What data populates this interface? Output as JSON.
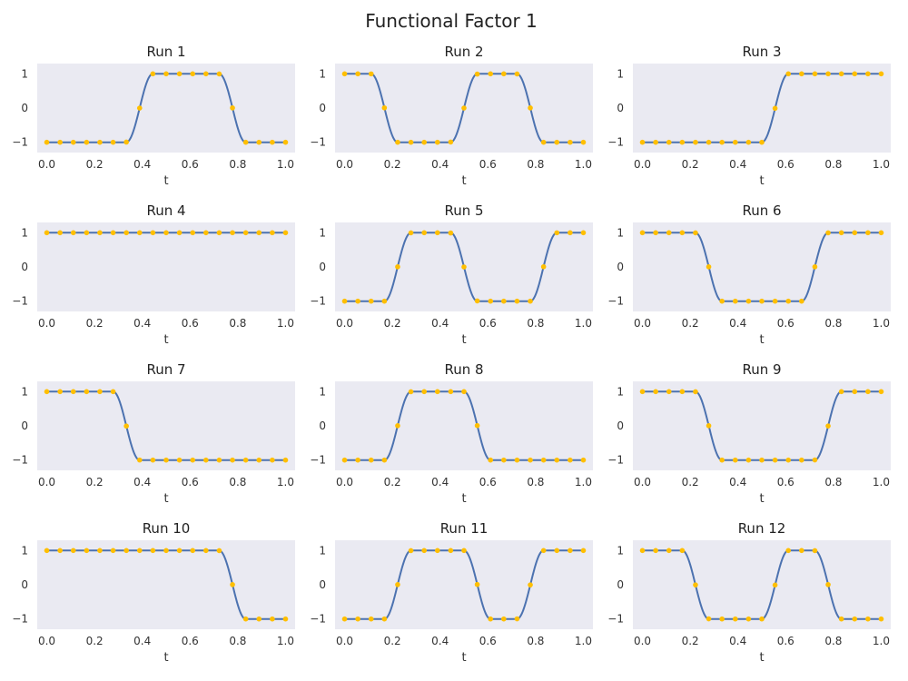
{
  "figure": {
    "title": "Functional Factor 1",
    "xlabel": "t",
    "line_color": "#4c72b0",
    "point_color": "#ffbf00",
    "panel_bg": "#eaeaf2"
  },
  "chart_data": [
    {
      "type": "line",
      "title": "Run 1",
      "xlabel": "t",
      "ylabel": "",
      "xlim": [
        -0.04,
        1.04
      ],
      "ylim": [
        -1.3,
        1.3
      ],
      "xticks": [
        "0.0",
        "0.2",
        "0.4",
        "0.6",
        "0.8",
        "1.0"
      ],
      "yticks": [
        "1",
        "0",
        "−1"
      ],
      "grid": false,
      "series": [
        {
          "x": [
            0,
            0.333,
            0.389,
            0.444,
            0.722,
            0.778,
            0.833,
            1
          ],
          "y": [
            -1,
            -1,
            0,
            1,
            1,
            0,
            -1,
            -1
          ]
        }
      ]
    },
    {
      "type": "line",
      "title": "Run 2",
      "xlabel": "t",
      "ylabel": "",
      "xlim": [
        -0.04,
        1.04
      ],
      "ylim": [
        -1.3,
        1.3
      ],
      "xticks": [
        "0.0",
        "0.2",
        "0.4",
        "0.6",
        "0.8",
        "1.0"
      ],
      "yticks": [
        "1",
        "0",
        "−1"
      ],
      "grid": false,
      "series": [
        {
          "x": [
            0,
            0.111,
            0.167,
            0.222,
            0.444,
            0.5,
            0.556,
            0.722,
            0.778,
            0.833,
            1
          ],
          "y": [
            1,
            1,
            0,
            -1,
            -1,
            0,
            1,
            1,
            0,
            -1,
            -1
          ]
        }
      ]
    },
    {
      "type": "line",
      "title": "Run 3",
      "xlabel": "t",
      "ylabel": "",
      "xlim": [
        -0.04,
        1.04
      ],
      "ylim": [
        -1.3,
        1.3
      ],
      "xticks": [
        "0.0",
        "0.2",
        "0.4",
        "0.6",
        "0.8",
        "1.0"
      ],
      "yticks": [
        "1",
        "0",
        "−1"
      ],
      "grid": false,
      "series": [
        {
          "x": [
            0,
            0.5,
            0.556,
            0.611,
            1
          ],
          "y": [
            -1,
            -1,
            0,
            1,
            1
          ]
        }
      ]
    },
    {
      "type": "line",
      "title": "Run 4",
      "xlabel": "t",
      "ylabel": "",
      "xlim": [
        -0.04,
        1.04
      ],
      "ylim": [
        -1.3,
        1.3
      ],
      "xticks": [
        "0.0",
        "0.2",
        "0.4",
        "0.6",
        "0.8",
        "1.0"
      ],
      "yticks": [
        "1",
        "0",
        "−1"
      ],
      "grid": false,
      "series": [
        {
          "x": [
            0,
            1
          ],
          "y": [
            1,
            1
          ]
        }
      ]
    },
    {
      "type": "line",
      "title": "Run 5",
      "xlabel": "t",
      "ylabel": "",
      "xlim": [
        -0.04,
        1.04
      ],
      "ylim": [
        -1.3,
        1.3
      ],
      "xticks": [
        "0.0",
        "0.2",
        "0.4",
        "0.6",
        "0.8",
        "1.0"
      ],
      "yticks": [
        "1",
        "0",
        "−1"
      ],
      "grid": false,
      "series": [
        {
          "x": [
            0,
            0.167,
            0.222,
            0.278,
            0.444,
            0.5,
            0.556,
            0.778,
            0.833,
            0.889,
            1
          ],
          "y": [
            -1,
            -1,
            0,
            1,
            1,
            0,
            -1,
            -1,
            0,
            1,
            1
          ]
        }
      ]
    },
    {
      "type": "line",
      "title": "Run 6",
      "xlabel": "t",
      "ylabel": "",
      "xlim": [
        -0.04,
        1.04
      ],
      "ylim": [
        -1.3,
        1.3
      ],
      "xticks": [
        "0.0",
        "0.2",
        "0.4",
        "0.6",
        "0.8",
        "1.0"
      ],
      "yticks": [
        "1",
        "0",
        "−1"
      ],
      "grid": false,
      "series": [
        {
          "x": [
            0,
            0.222,
            0.278,
            0.333,
            0.667,
            0.722,
            0.778,
            1
          ],
          "y": [
            1,
            1,
            0,
            -1,
            -1,
            0,
            1,
            1
          ]
        }
      ]
    },
    {
      "type": "line",
      "title": "Run 7",
      "xlabel": "t",
      "ylabel": "",
      "xlim": [
        -0.04,
        1.04
      ],
      "ylim": [
        -1.3,
        1.3
      ],
      "xticks": [
        "0.0",
        "0.2",
        "0.4",
        "0.6",
        "0.8",
        "1.0"
      ],
      "yticks": [
        "1",
        "0",
        "−1"
      ],
      "grid": false,
      "series": [
        {
          "x": [
            0,
            0.278,
            0.333,
            0.389,
            1
          ],
          "y": [
            1,
            1,
            0,
            -1,
            -1
          ]
        }
      ]
    },
    {
      "type": "line",
      "title": "Run 8",
      "xlabel": "t",
      "ylabel": "",
      "xlim": [
        -0.04,
        1.04
      ],
      "ylim": [
        -1.3,
        1.3
      ],
      "xticks": [
        "0.0",
        "0.2",
        "0.4",
        "0.6",
        "0.8",
        "1.0"
      ],
      "yticks": [
        "1",
        "0",
        "−1"
      ],
      "grid": false,
      "series": [
        {
          "x": [
            0,
            0.167,
            0.222,
            0.278,
            0.5,
            0.556,
            0.611,
            1
          ],
          "y": [
            -1,
            -1,
            0,
            1,
            1,
            0,
            -1,
            -1
          ]
        }
      ]
    },
    {
      "type": "line",
      "title": "Run 9",
      "xlabel": "t",
      "ylabel": "",
      "xlim": [
        -0.04,
        1.04
      ],
      "ylim": [
        -1.3,
        1.3
      ],
      "xticks": [
        "0.0",
        "0.2",
        "0.4",
        "0.6",
        "0.8",
        "1.0"
      ],
      "yticks": [
        "1",
        "0",
        "−1"
      ],
      "grid": false,
      "series": [
        {
          "x": [
            0,
            0.222,
            0.278,
            0.333,
            0.722,
            0.778,
            0.833,
            1
          ],
          "y": [
            1,
            1,
            0,
            -1,
            -1,
            0,
            1,
            1
          ]
        }
      ]
    },
    {
      "type": "line",
      "title": "Run 10",
      "xlabel": "t",
      "ylabel": "",
      "xlim": [
        -0.04,
        1.04
      ],
      "ylim": [
        -1.3,
        1.3
      ],
      "xticks": [
        "0.0",
        "0.2",
        "0.4",
        "0.6",
        "0.8",
        "1.0"
      ],
      "yticks": [
        "1",
        "0",
        "−1"
      ],
      "grid": false,
      "series": [
        {
          "x": [
            0,
            0.722,
            0.778,
            0.833,
            1
          ],
          "y": [
            1,
            1,
            0,
            -1,
            -1
          ]
        }
      ]
    },
    {
      "type": "line",
      "title": "Run 11",
      "xlabel": "t",
      "ylabel": "",
      "xlim": [
        -0.04,
        1.04
      ],
      "ylim": [
        -1.3,
        1.3
      ],
      "xticks": [
        "0.0",
        "0.2",
        "0.4",
        "0.6",
        "0.8",
        "1.0"
      ],
      "yticks": [
        "1",
        "0",
        "−1"
      ],
      "grid": false,
      "series": [
        {
          "x": [
            0,
            0.167,
            0.222,
            0.278,
            0.5,
            0.556,
            0.611,
            0.722,
            0.778,
            0.833,
            1
          ],
          "y": [
            -1,
            -1,
            0,
            1,
            1,
            0,
            -1,
            -1,
            0,
            1,
            1
          ]
        }
      ]
    },
    {
      "type": "line",
      "title": "Run 12",
      "xlabel": "t",
      "ylabel": "",
      "xlim": [
        -0.04,
        1.04
      ],
      "ylim": [
        -1.3,
        1.3
      ],
      "xticks": [
        "0.0",
        "0.2",
        "0.4",
        "0.6",
        "0.8",
        "1.0"
      ],
      "yticks": [
        "1",
        "0",
        "−1"
      ],
      "grid": false,
      "series": [
        {
          "x": [
            0,
            0.167,
            0.222,
            0.278,
            0.5,
            0.556,
            0.611,
            0.722,
            0.778,
            0.833,
            1
          ],
          "y": [
            1,
            1,
            0,
            -1,
            -1,
            0,
            1,
            1,
            0,
            -1,
            -1
          ]
        }
      ]
    }
  ]
}
